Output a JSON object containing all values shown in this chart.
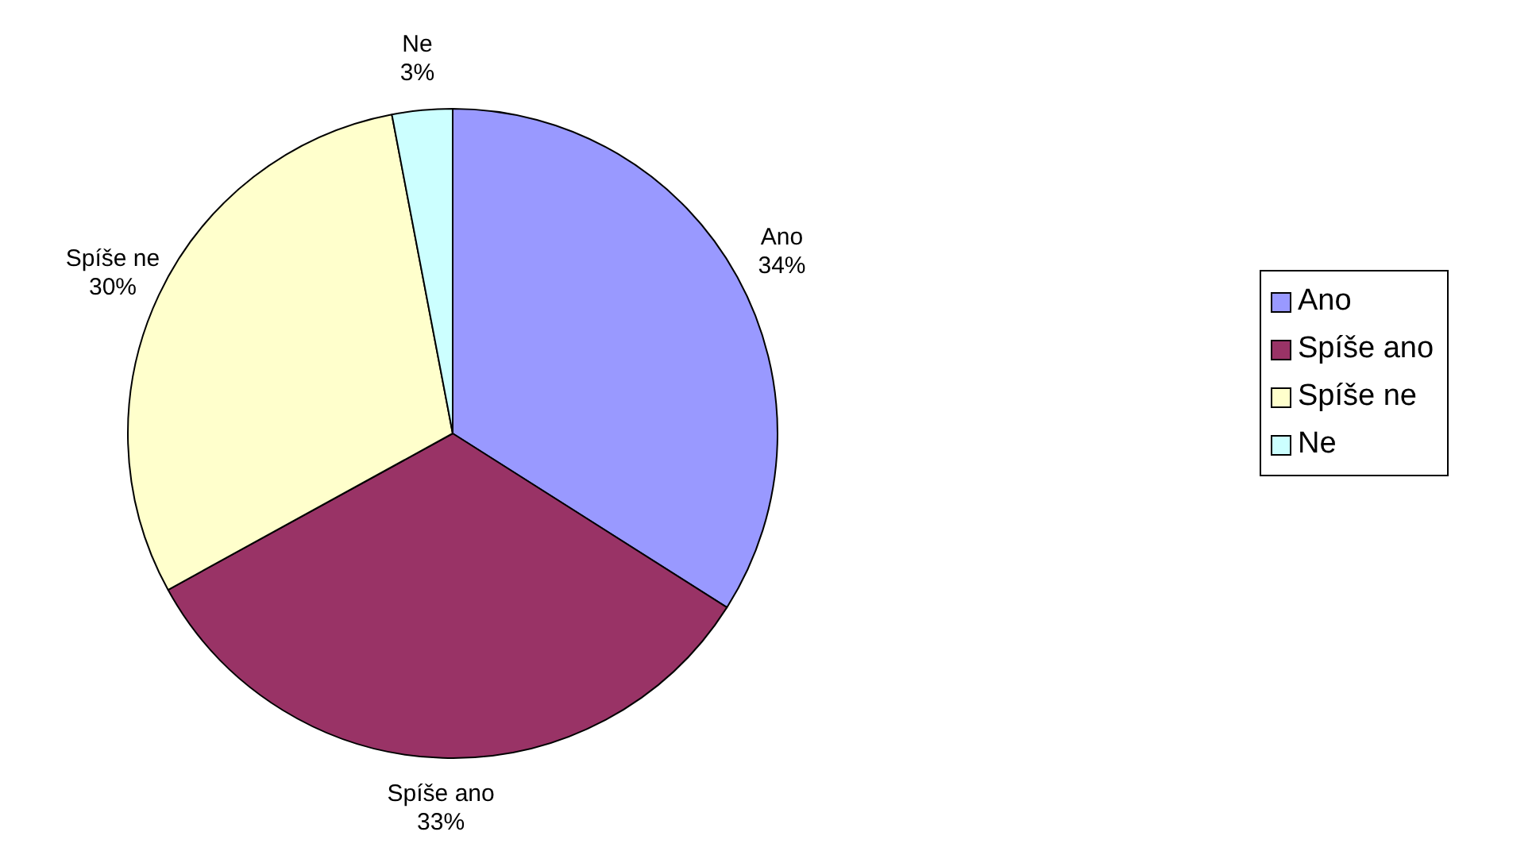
{
  "chart_data": {
    "type": "pie",
    "categories": [
      "Ano",
      "Spíše ano",
      "Spíše ne",
      "Ne"
    ],
    "values": [
      34,
      33,
      30,
      3
    ],
    "colors": [
      "#9999ff",
      "#993366",
      "#ffffcc",
      "#ccffff"
    ],
    "value_labels": [
      "34%",
      "33%",
      "30%",
      "3%"
    ],
    "legend": "right"
  }
}
